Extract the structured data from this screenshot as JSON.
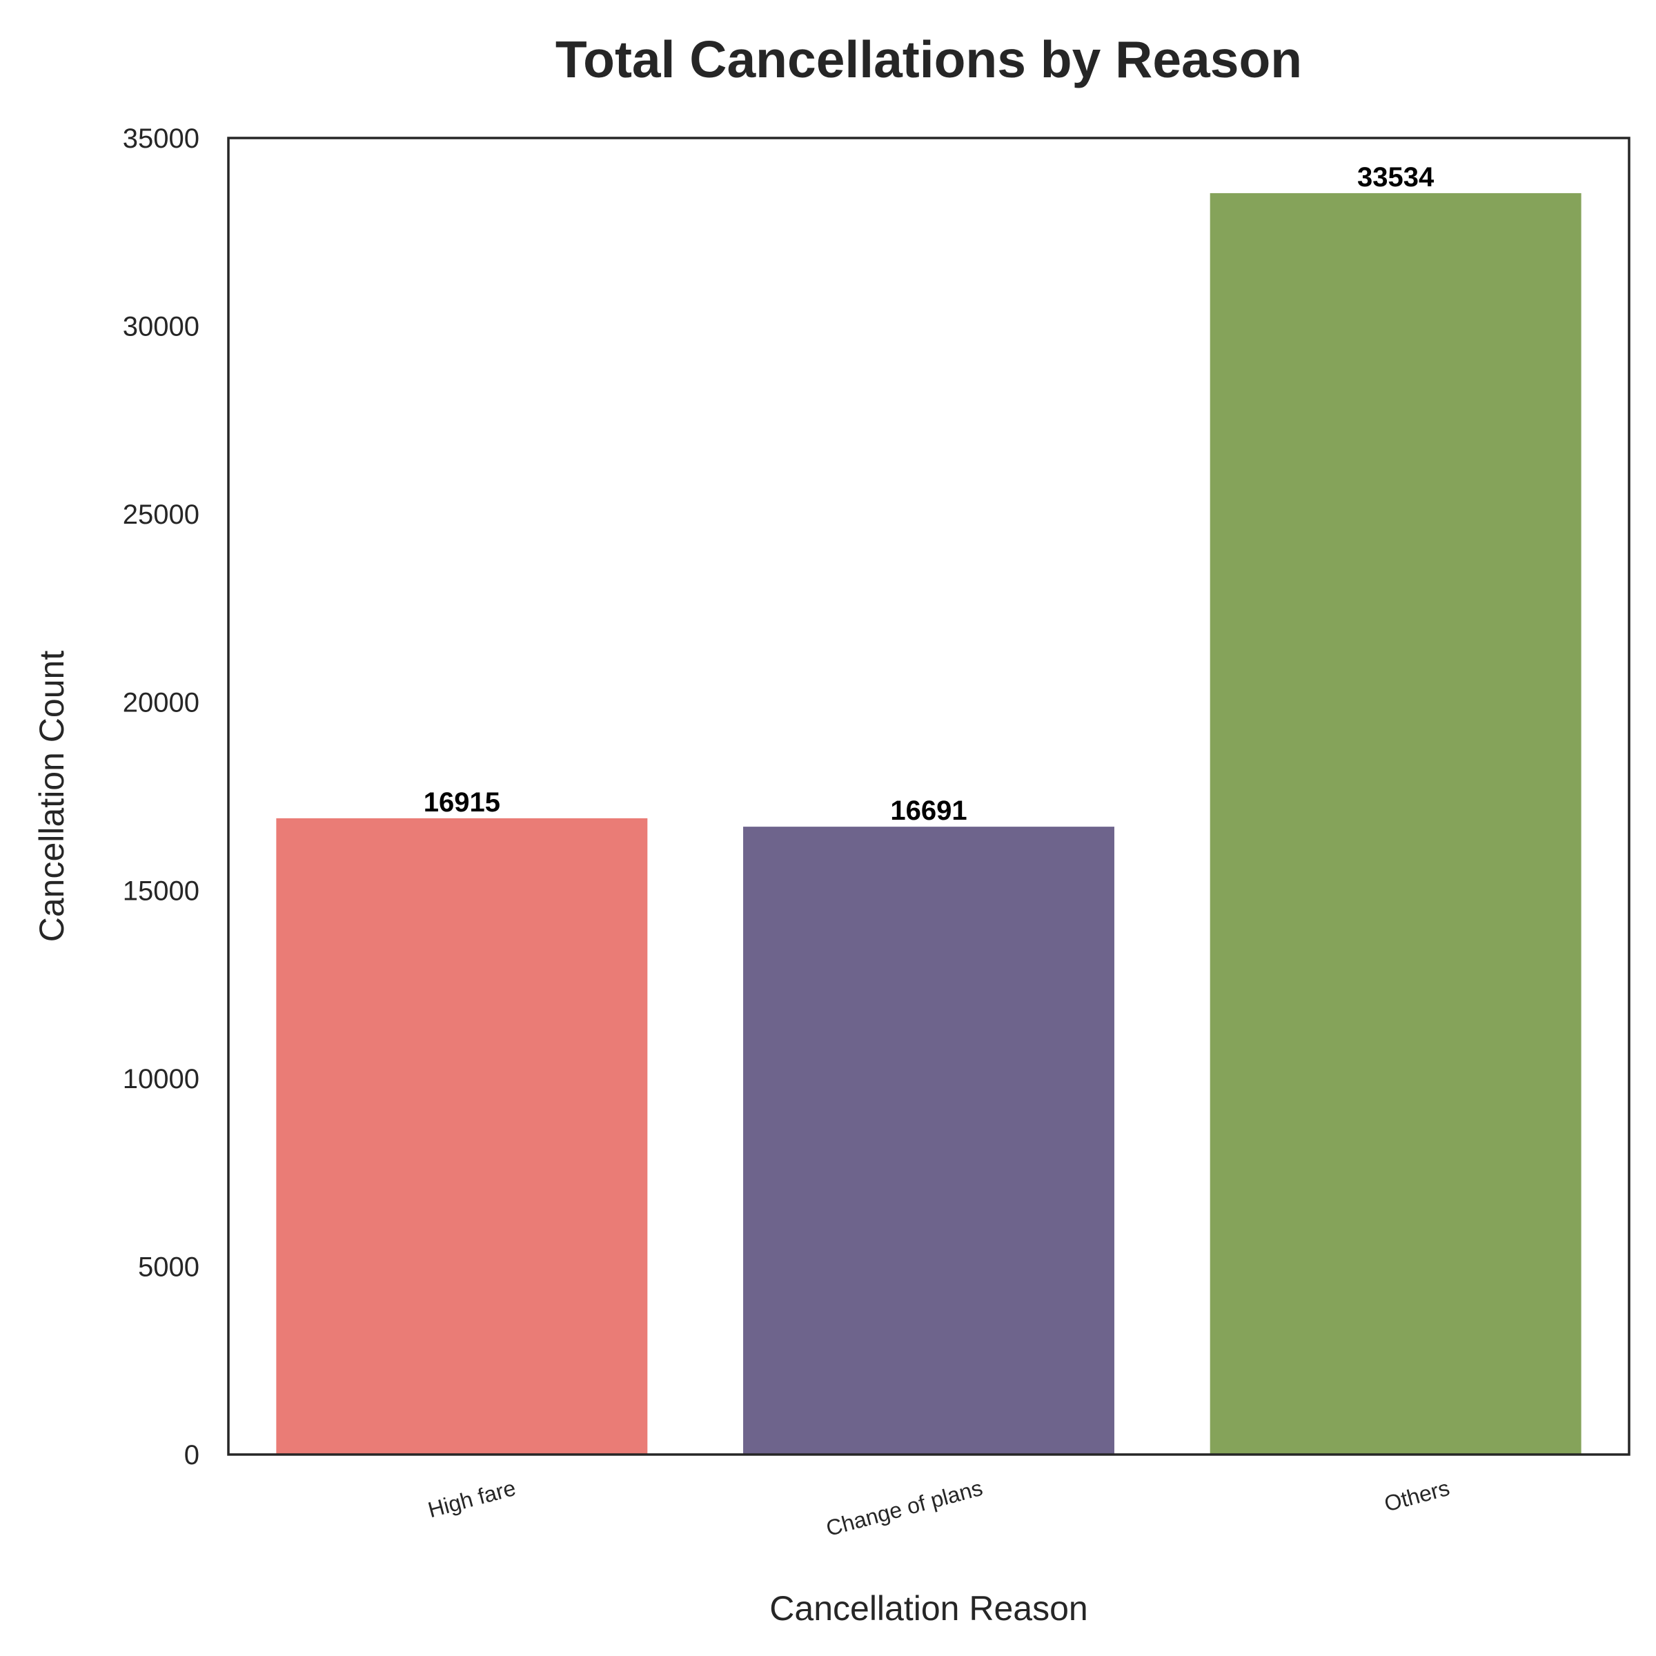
{
  "chart_data": {
    "type": "bar",
    "title": "Total Cancellations by Reason",
    "xlabel": "Cancellation Reason",
    "ylabel": "Cancellation Count",
    "categories": [
      "High fare",
      "Change of plans",
      "Others"
    ],
    "values": [
      16915,
      16691,
      33534
    ],
    "data_labels": [
      "16915",
      "16691",
      "33534"
    ],
    "colors": [
      "#ea7c76",
      "#6e648c",
      "#85a35a"
    ],
    "ylim": [
      0,
      35000
    ],
    "yticks": [
      0,
      5000,
      10000,
      15000,
      20000,
      25000,
      30000,
      35000
    ],
    "ytick_labels": [
      "0",
      "5000",
      "10000",
      "15000",
      "20000",
      "25000",
      "30000",
      "35000"
    ],
    "grid": false,
    "legend": "none",
    "xtick_rotation_deg": 15
  }
}
